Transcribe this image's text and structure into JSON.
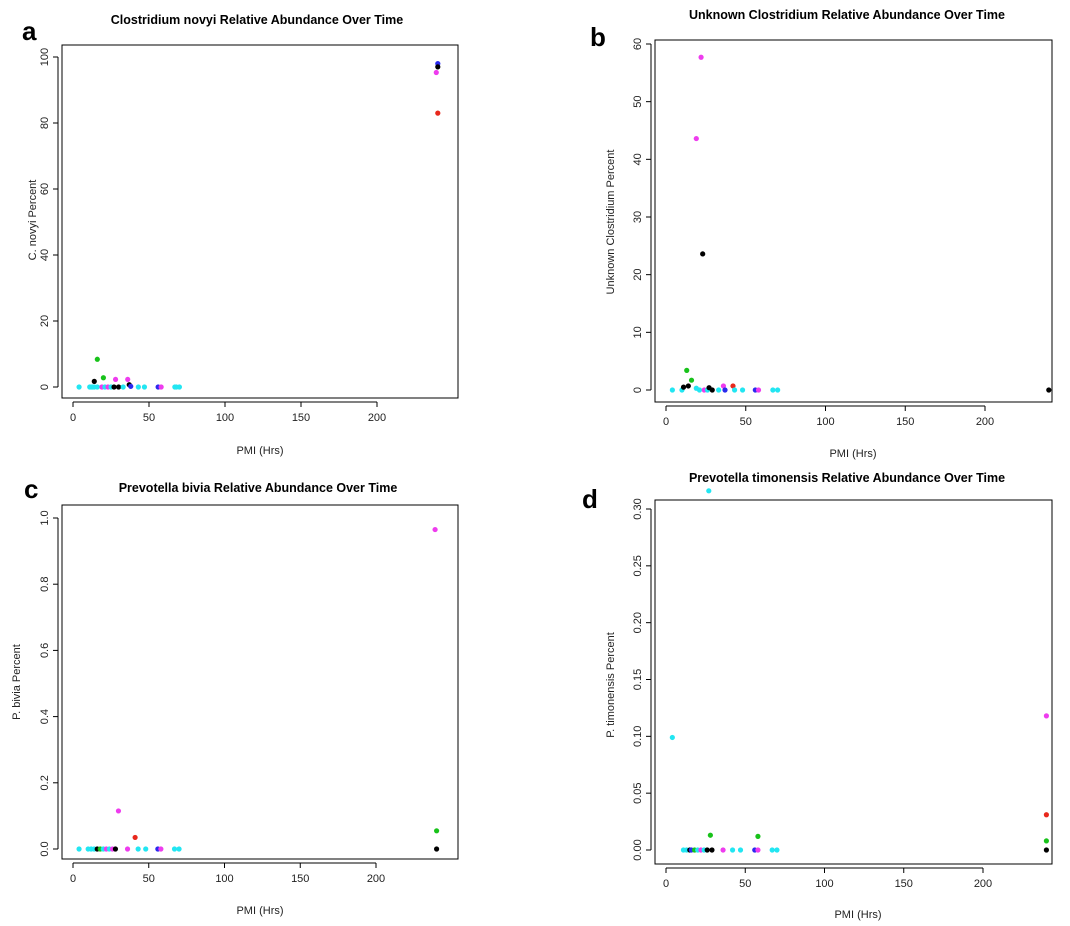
{
  "colors": {
    "cyan": "#22e6f2",
    "black": "#000000",
    "green": "#18c21a",
    "magenta": "#ee3cee",
    "red": "#e8281c",
    "blue": "#2a2aee"
  },
  "chart_data": [
    {
      "panel": "a",
      "type": "scatter",
      "title": "Clostridium novyi Relative Abundance Over Time",
      "xlabel": "PMI (Hrs)",
      "ylabel": "C. novyi Percent",
      "xlim": [
        0,
        240
      ],
      "ylim": [
        0,
        100
      ],
      "xticks": [
        0,
        50,
        100,
        150,
        200
      ],
      "yticks": [
        0,
        20,
        40,
        60,
        80,
        100
      ],
      "grid": false,
      "points": [
        {
          "x": 4,
          "y": 0,
          "color": "cyan"
        },
        {
          "x": 11,
          "y": 0,
          "color": "cyan"
        },
        {
          "x": 12,
          "y": 0,
          "color": "cyan"
        },
        {
          "x": 13,
          "y": 0,
          "color": "cyan"
        },
        {
          "x": 14,
          "y": 0,
          "color": "cyan"
        },
        {
          "x": 16,
          "y": 0,
          "color": "cyan"
        },
        {
          "x": 14,
          "y": 1.7,
          "color": "black"
        },
        {
          "x": 16,
          "y": 8.4,
          "color": "green"
        },
        {
          "x": 20,
          "y": 2.8,
          "color": "green"
        },
        {
          "x": 19,
          "y": 0,
          "color": "magenta"
        },
        {
          "x": 21,
          "y": 0,
          "color": "cyan"
        },
        {
          "x": 23,
          "y": 0,
          "color": "magenta"
        },
        {
          "x": 25,
          "y": 0,
          "color": "cyan"
        },
        {
          "x": 27,
          "y": 0,
          "color": "black"
        },
        {
          "x": 28,
          "y": 2.3,
          "color": "magenta"
        },
        {
          "x": 30,
          "y": 0,
          "color": "black"
        },
        {
          "x": 33,
          "y": 0,
          "color": "cyan"
        },
        {
          "x": 36,
          "y": 2.3,
          "color": "magenta"
        },
        {
          "x": 37,
          "y": 0.7,
          "color": "black"
        },
        {
          "x": 38,
          "y": 0.2,
          "color": "blue"
        },
        {
          "x": 43,
          "y": 0,
          "color": "cyan"
        },
        {
          "x": 47,
          "y": 0,
          "color": "cyan"
        },
        {
          "x": 56,
          "y": 0,
          "color": "blue"
        },
        {
          "x": 58,
          "y": 0,
          "color": "magenta"
        },
        {
          "x": 67,
          "y": 0,
          "color": "cyan"
        },
        {
          "x": 68,
          "y": 0,
          "color": "cyan"
        },
        {
          "x": 70,
          "y": 0,
          "color": "cyan"
        },
        {
          "x": 240,
          "y": 98,
          "color": "blue"
        },
        {
          "x": 240,
          "y": 97,
          "color": "black"
        },
        {
          "x": 239,
          "y": 95.3,
          "color": "magenta"
        },
        {
          "x": 240,
          "y": 83,
          "color": "red"
        }
      ]
    },
    {
      "panel": "b",
      "type": "scatter",
      "title": "Unknown Clostridium Relative Abundance Over Time",
      "xlabel": "PMI (Hrs)",
      "ylabel": "Unknown Clostridium Percent",
      "xlim": [
        0,
        240
      ],
      "ylim": [
        0,
        60
      ],
      "xticks": [
        0,
        50,
        100,
        150,
        200
      ],
      "yticks": [
        0,
        10,
        20,
        30,
        40,
        50,
        60
      ],
      "grid": false,
      "points": [
        {
          "x": 4,
          "y": 0,
          "color": "cyan"
        },
        {
          "x": 10,
          "y": 0,
          "color": "cyan"
        },
        {
          "x": 11,
          "y": 0.5,
          "color": "black"
        },
        {
          "x": 13,
          "y": 3.4,
          "color": "green"
        },
        {
          "x": 14,
          "y": 0.7,
          "color": "black"
        },
        {
          "x": 16,
          "y": 1.7,
          "color": "green"
        },
        {
          "x": 19,
          "y": 43.6,
          "color": "magenta"
        },
        {
          "x": 19,
          "y": 0.3,
          "color": "cyan"
        },
        {
          "x": 21,
          "y": 0,
          "color": "cyan"
        },
        {
          "x": 22,
          "y": 57.7,
          "color": "magenta"
        },
        {
          "x": 23,
          "y": 23.6,
          "color": "black"
        },
        {
          "x": 24,
          "y": 0,
          "color": "magenta"
        },
        {
          "x": 26,
          "y": 0,
          "color": "cyan"
        },
        {
          "x": 27,
          "y": 0.4,
          "color": "black"
        },
        {
          "x": 29,
          "y": 0,
          "color": "black"
        },
        {
          "x": 33,
          "y": 0,
          "color": "cyan"
        },
        {
          "x": 36,
          "y": 0.7,
          "color": "magenta"
        },
        {
          "x": 37,
          "y": 0,
          "color": "blue"
        },
        {
          "x": 42,
          "y": 0.7,
          "color": "red"
        },
        {
          "x": 43,
          "y": 0,
          "color": "cyan"
        },
        {
          "x": 48,
          "y": 0,
          "color": "cyan"
        },
        {
          "x": 56,
          "y": 0,
          "color": "blue"
        },
        {
          "x": 58,
          "y": 0,
          "color": "magenta"
        },
        {
          "x": 67,
          "y": 0,
          "color": "cyan"
        },
        {
          "x": 70,
          "y": 0,
          "color": "cyan"
        },
        {
          "x": 240,
          "y": 0,
          "color": "black"
        }
      ]
    },
    {
      "panel": "c",
      "type": "scatter",
      "title": "Prevotella bivia Relative Abundance Over Time",
      "xlabel": "PMI (Hrs)",
      "ylabel": "P. bivia Percent",
      "xlim": [
        0,
        240
      ],
      "ylim": [
        0,
        1.0
      ],
      "xticks": [
        0,
        50,
        100,
        150,
        200
      ],
      "yticks": [
        "0.0",
        "0.2",
        "0.4",
        "0.6",
        "0.8",
        "1.0"
      ],
      "grid": false,
      "points": [
        {
          "x": 4,
          "y": 0,
          "color": "cyan"
        },
        {
          "x": 10,
          "y": 0,
          "color": "cyan"
        },
        {
          "x": 12,
          "y": 0,
          "color": "cyan"
        },
        {
          "x": 14,
          "y": 0,
          "color": "cyan"
        },
        {
          "x": 16,
          "y": 0,
          "color": "black"
        },
        {
          "x": 18,
          "y": 0,
          "color": "green"
        },
        {
          "x": 20,
          "y": 0,
          "color": "cyan"
        },
        {
          "x": 22,
          "y": 0,
          "color": "magenta"
        },
        {
          "x": 24,
          "y": 0,
          "color": "cyan"
        },
        {
          "x": 26,
          "y": 0,
          "color": "magenta"
        },
        {
          "x": 28,
          "y": 0,
          "color": "black"
        },
        {
          "x": 30,
          "y": 0.115,
          "color": "magenta"
        },
        {
          "x": 36,
          "y": 0,
          "color": "magenta"
        },
        {
          "x": 41,
          "y": 0.035,
          "color": "red"
        },
        {
          "x": 43,
          "y": 0,
          "color": "cyan"
        },
        {
          "x": 48,
          "y": 0,
          "color": "cyan"
        },
        {
          "x": 56,
          "y": 0,
          "color": "blue"
        },
        {
          "x": 58,
          "y": 0,
          "color": "magenta"
        },
        {
          "x": 67,
          "y": 0,
          "color": "cyan"
        },
        {
          "x": 70,
          "y": 0,
          "color": "cyan"
        },
        {
          "x": 239,
          "y": 0.965,
          "color": "magenta"
        },
        {
          "x": 240,
          "y": 0.055,
          "color": "green"
        },
        {
          "x": 240,
          "y": 0,
          "color": "black"
        }
      ]
    },
    {
      "panel": "d",
      "type": "scatter",
      "title": "Prevotella timonensis Relative Abundance Over Time",
      "xlabel": "PMI (Hrs)",
      "ylabel": "P. timonensis Percent",
      "xlim": [
        0,
        240
      ],
      "ylim": [
        0,
        0.32
      ],
      "xticks": [
        0,
        50,
        100,
        150,
        200
      ],
      "yticks": [
        "0.00",
        "0.05",
        "0.10",
        "0.15",
        "0.20",
        "0.25",
        "0.30"
      ],
      "grid": false,
      "points": [
        {
          "x": 4,
          "y": 0.099,
          "color": "cyan"
        },
        {
          "x": 11,
          "y": 0,
          "color": "cyan"
        },
        {
          "x": 13,
          "y": 0,
          "color": "cyan"
        },
        {
          "x": 15,
          "y": 0,
          "color": "black"
        },
        {
          "x": 16,
          "y": 0,
          "color": "blue"
        },
        {
          "x": 18,
          "y": 0,
          "color": "green"
        },
        {
          "x": 20,
          "y": 0,
          "color": "cyan"
        },
        {
          "x": 22,
          "y": 0,
          "color": "magenta"
        },
        {
          "x": 24,
          "y": 0,
          "color": "cyan"
        },
        {
          "x": 26,
          "y": 0,
          "color": "black"
        },
        {
          "x": 27,
          "y": 0.316,
          "color": "cyan"
        },
        {
          "x": 28,
          "y": 0.013,
          "color": "green"
        },
        {
          "x": 29,
          "y": 0,
          "color": "black"
        },
        {
          "x": 36,
          "y": 0,
          "color": "magenta"
        },
        {
          "x": 42,
          "y": 0,
          "color": "cyan"
        },
        {
          "x": 47,
          "y": 0,
          "color": "cyan"
        },
        {
          "x": 56,
          "y": 0,
          "color": "blue"
        },
        {
          "x": 58,
          "y": 0.012,
          "color": "green"
        },
        {
          "x": 58,
          "y": 0,
          "color": "magenta"
        },
        {
          "x": 67,
          "y": 0,
          "color": "cyan"
        },
        {
          "x": 70,
          "y": 0,
          "color": "cyan"
        },
        {
          "x": 240,
          "y": 0.118,
          "color": "magenta"
        },
        {
          "x": 240,
          "y": 0.031,
          "color": "red"
        },
        {
          "x": 240,
          "y": 0.008,
          "color": "green"
        },
        {
          "x": 240,
          "y": 0,
          "color": "black"
        }
      ]
    }
  ]
}
